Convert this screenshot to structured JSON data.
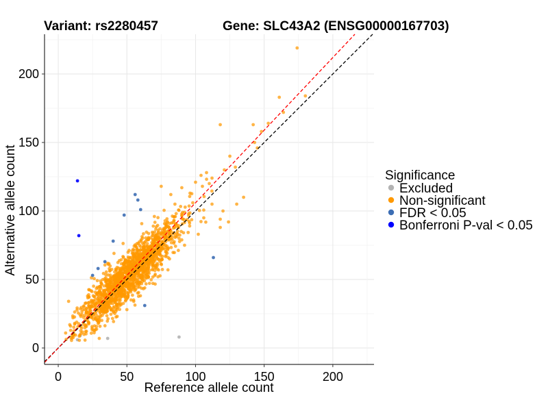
{
  "chart_data": {
    "type": "scatter",
    "title_variant": "Variant: rs2280457",
    "title_gene": "Gene: SLC43A2 (ENSG00000167703)",
    "xlabel": "Reference allele count",
    "ylabel": "Alternative allele count",
    "xlim": [
      -10,
      230
    ],
    "ylim": [
      -12,
      229
    ],
    "x_ticks": [
      0,
      50,
      100,
      150,
      200
    ],
    "y_ticks": [
      0,
      50,
      100,
      150,
      200
    ],
    "grid": true,
    "legend": {
      "title": "Significance",
      "position": "right",
      "items": [
        {
          "label": "Excluded",
          "color": "#b3b3b3"
        },
        {
          "label": "Non-significant",
          "color": "#ff9900"
        },
        {
          "label": "FDR < 0.05",
          "color": "#3d6eb4"
        },
        {
          "label": "Bonferroni P-val < 0.05",
          "color": "#0000ff"
        }
      ]
    },
    "reference_lines": [
      {
        "name": "identity",
        "style": "dashed",
        "color": "#000000",
        "slope": 1.0,
        "intercept": 0
      },
      {
        "name": "fitted",
        "style": "dashed",
        "color": "#ff0000",
        "slope": 1.06,
        "intercept": 0
      }
    ],
    "series": [
      {
        "name": "Excluded",
        "color": "#b3b3b3",
        "points": [
          [
            14,
            6
          ],
          [
            16,
            9
          ],
          [
            36,
            7
          ],
          [
            88,
            8
          ],
          [
            11,
            11
          ]
        ]
      },
      {
        "name": "FDR < 0.05",
        "color": "#3d6eb4",
        "points": [
          [
            56,
            112
          ],
          [
            58,
            108
          ],
          [
            60,
            101
          ],
          [
            48,
            97
          ],
          [
            40,
            78
          ],
          [
            113,
            66
          ],
          [
            63,
            31
          ],
          [
            25,
            53
          ],
          [
            29,
            58
          ],
          [
            34,
            63
          ]
        ]
      },
      {
        "name": "Bonferroni P-val < 0.05",
        "color": "#0000ff",
        "points": [
          [
            14,
            122
          ],
          [
            15,
            82
          ]
        ]
      },
      {
        "name": "Non-significant",
        "color": "#ff9900",
        "generated": true,
        "cluster": {
          "count": 1700,
          "center_x": 52,
          "sd_main": 18,
          "sd_perp": 7,
          "slope": 1.03,
          "seed": 20
        },
        "points": [
          [
            174,
            219
          ],
          [
            161,
            183
          ],
          [
            180,
            184
          ],
          [
            164,
            172
          ],
          [
            153,
            164
          ],
          [
            142,
            163
          ],
          [
            118,
            163
          ],
          [
            148,
            158
          ],
          [
            143,
            150
          ],
          [
            145,
            146
          ],
          [
            125,
            140
          ],
          [
            129,
            132
          ],
          [
            121,
            130
          ],
          [
            112,
            124
          ],
          [
            108,
            128
          ],
          [
            104,
            126
          ],
          [
            100,
            121
          ],
          [
            124,
            92
          ],
          [
            118,
            94
          ],
          [
            112,
            105
          ],
          [
            96,
            113
          ],
          [
            90,
            117
          ],
          [
            118,
            88
          ],
          [
            130,
            105
          ],
          [
            135,
            110
          ],
          [
            106,
            95
          ],
          [
            20,
            12
          ],
          [
            22,
            22
          ],
          [
            12,
            18
          ],
          [
            18,
            28
          ],
          [
            26,
            31
          ],
          [
            30,
            20
          ],
          [
            55,
            34
          ],
          [
            50,
            28
          ],
          [
            46,
            40
          ],
          [
            105,
            118
          ],
          [
            110,
            120
          ],
          [
            98,
            106
          ],
          [
            85,
            105
          ],
          [
            82,
            112
          ],
          [
            95,
            98
          ],
          [
            120,
            100
          ],
          [
            102,
            83
          ],
          [
            92,
            75
          ],
          [
            88,
            80
          ],
          [
            75,
            118
          ],
          [
            70,
            96
          ]
        ]
      }
    ]
  }
}
